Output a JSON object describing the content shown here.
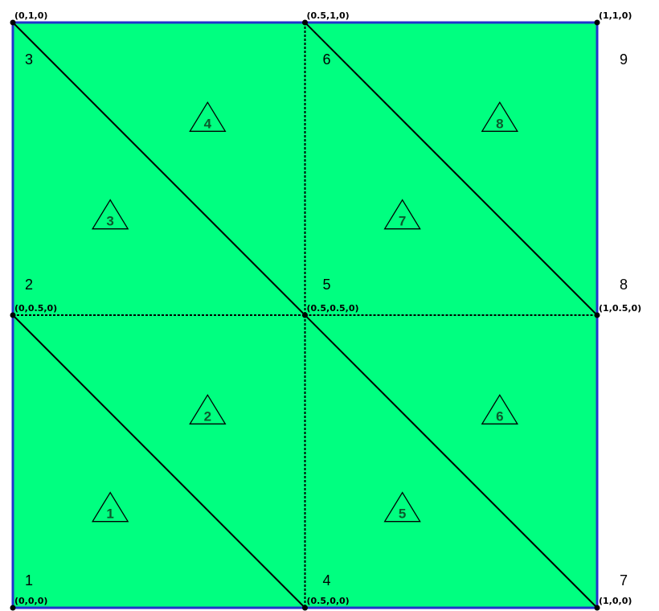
{
  "colors": {
    "fill": "#00ff80",
    "border": "#2233cc",
    "edge": "#000000",
    "element_marker_text": "#0b5a2c"
  },
  "nodes": [
    {
      "id": "1",
      "coord": "(0,0,0)"
    },
    {
      "id": "2",
      "coord": "(0,0.5,0)"
    },
    {
      "id": "3",
      "coord": "(0,1,0)"
    },
    {
      "id": "4",
      "coord": "(0.5,0,0)"
    },
    {
      "id": "5",
      "coord": "(0.5,0.5,0)"
    },
    {
      "id": "6",
      "coord": "(0.5,1,0)"
    },
    {
      "id": "7",
      "coord": "(1,0,0)"
    },
    {
      "id": "8",
      "coord": "(1,0.5,0)"
    },
    {
      "id": "9",
      "coord": "(1,1,0)"
    }
  ],
  "elements": [
    {
      "id": "1",
      "nodes": [
        "1",
        "4",
        "2"
      ]
    },
    {
      "id": "2",
      "nodes": [
        "4",
        "5",
        "2"
      ]
    },
    {
      "id": "3",
      "nodes": [
        "2",
        "5",
        "3"
      ]
    },
    {
      "id": "4",
      "nodes": [
        "5",
        "6",
        "3"
      ]
    },
    {
      "id": "5",
      "nodes": [
        "4",
        "7",
        "5"
      ]
    },
    {
      "id": "6",
      "nodes": [
        "7",
        "8",
        "5"
      ]
    },
    {
      "id": "7",
      "nodes": [
        "5",
        "8",
        "6"
      ]
    },
    {
      "id": "8",
      "nodes": [
        "8",
        "9",
        "6"
      ]
    }
  ]
}
